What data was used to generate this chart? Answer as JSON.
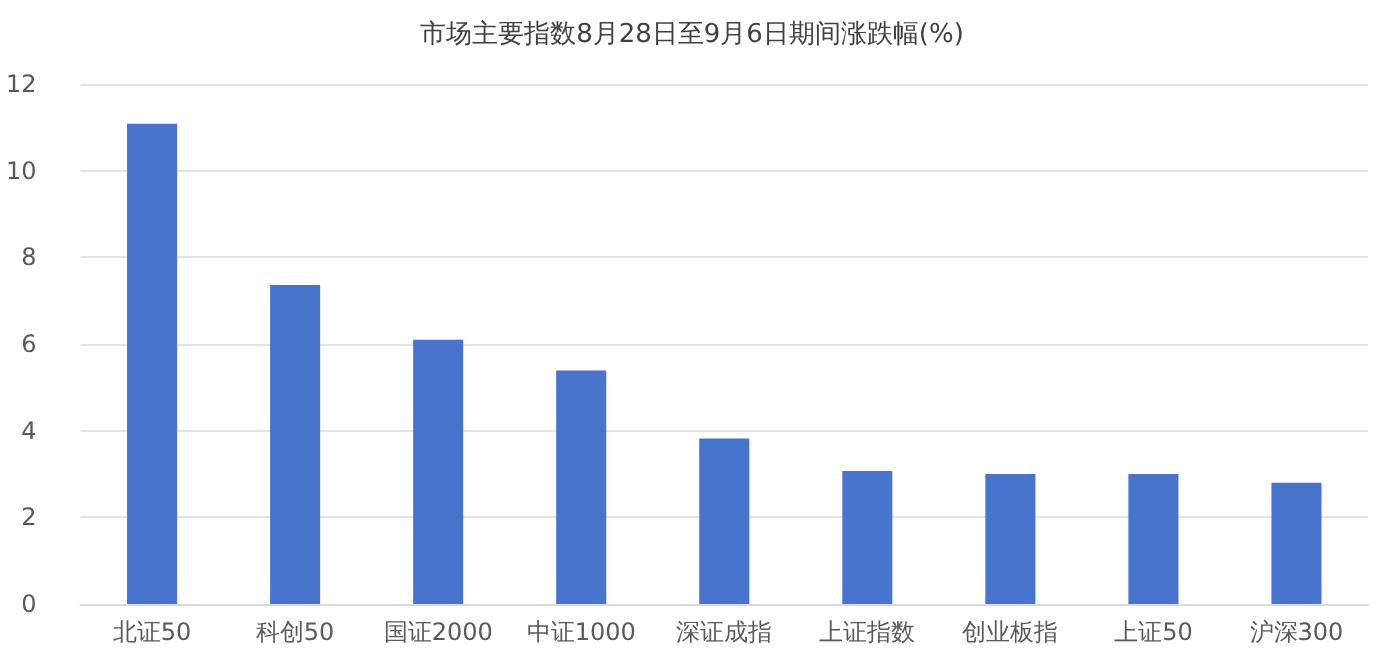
{
  "chart_data": {
    "type": "bar",
    "title": "市场主要指数8月28日至9月6日期间涨跌幅(%)",
    "categories": [
      "北证50",
      "科创50",
      "国证2000",
      "中证1000",
      "深证成指",
      "上证指数",
      "创业板指",
      "上证50",
      "沪深300"
    ],
    "values": [
      11.08,
      7.36,
      6.1,
      5.39,
      3.82,
      3.07,
      3.0,
      3.0,
      2.8
    ],
    "color": "#4874cb",
    "ylim": [
      0,
      12
    ],
    "yticks": [
      0,
      2,
      4,
      6,
      8,
      10,
      12
    ],
    "grid": "y"
  }
}
